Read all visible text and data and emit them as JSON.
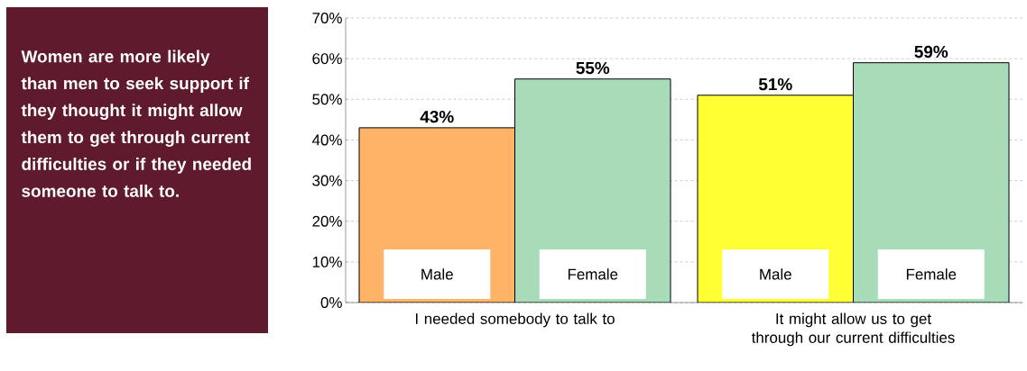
{
  "chart_data": {
    "type": "bar",
    "title": "Women are more likely than men to seek support if they thought it might allow them to get through current difficulties or if they needed someone to talk to.",
    "categories": [
      "I needed somebody to talk to",
      "It might allow us to get through our current difficulties"
    ],
    "series": [
      {
        "name": "Male",
        "colors": [
          "#ffb366",
          "#ffff33"
        ],
        "values": [
          43,
          51
        ],
        "value_labels": [
          "43%",
          "51%"
        ]
      },
      {
        "name": "Female",
        "colors": [
          "#a8dcb8",
          "#a8dcb8"
        ],
        "values": [
          55,
          59
        ],
        "value_labels": [
          "55%",
          "59%"
        ]
      }
    ],
    "ylim": [
      0,
      70
    ],
    "yticks": [
      {
        "value": 0,
        "label": "0%"
      },
      {
        "value": 10,
        "label": "10%"
      },
      {
        "value": 20,
        "label": "20%"
      },
      {
        "value": 30,
        "label": "30%"
      },
      {
        "value": 40,
        "label": "40%"
      },
      {
        "value": 50,
        "label": "50%"
      },
      {
        "value": 60,
        "label": "60%"
      },
      {
        "value": 70,
        "label": "70%"
      }
    ],
    "grid": "y",
    "legend": false
  }
}
